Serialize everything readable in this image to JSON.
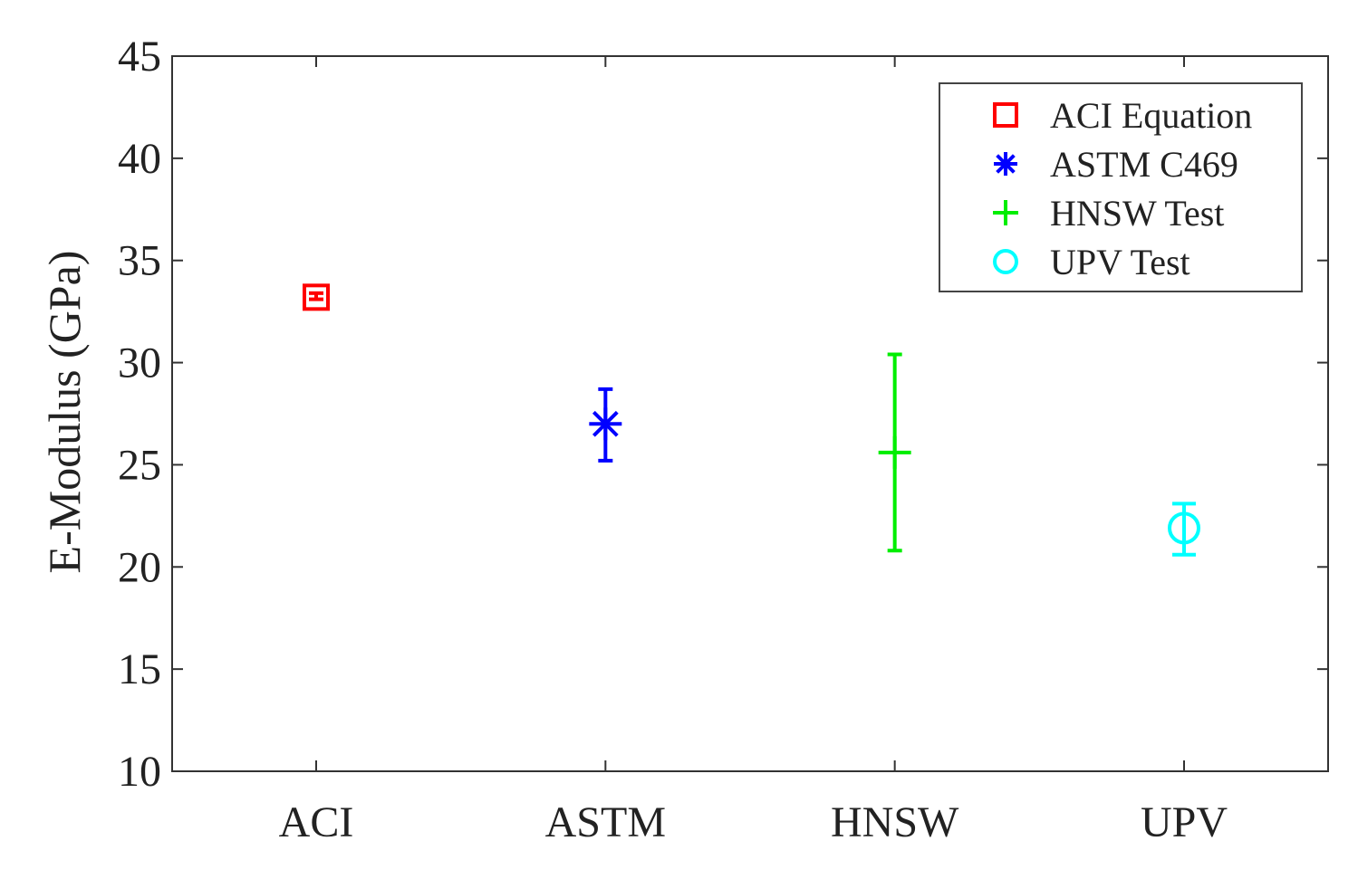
{
  "chart_data": {
    "type": "scatter",
    "categories": [
      "ACI",
      "ASTM",
      "HNSW",
      "UPV"
    ],
    "ylabel": "E-Modulus (GPa)",
    "xlabel": "",
    "ylim": [
      10,
      45
    ],
    "yticks": [
      10,
      15,
      20,
      25,
      30,
      35,
      40,
      45
    ],
    "grid": false,
    "legend_position": "top-right",
    "series": [
      {
        "name": "ACI Equation",
        "category": "ACI",
        "value": 33.2,
        "err_low": 33.1,
        "err_high": 33.4,
        "marker": "square",
        "color": "#ff0000"
      },
      {
        "name": "ASTM C469",
        "category": "ASTM",
        "value": 27.0,
        "err_low": 25.2,
        "err_high": 28.7,
        "marker": "asterisk",
        "color": "#0000ff"
      },
      {
        "name": "HNSW Test",
        "category": "HNSW",
        "value": 25.6,
        "err_low": 20.8,
        "err_high": 30.4,
        "marker": "plus",
        "color": "#00ee00"
      },
      {
        "name": "UPV Test",
        "category": "UPV",
        "value": 21.9,
        "err_low": 20.6,
        "err_high": 23.1,
        "marker": "circle",
        "color": "#00ffff"
      }
    ]
  }
}
